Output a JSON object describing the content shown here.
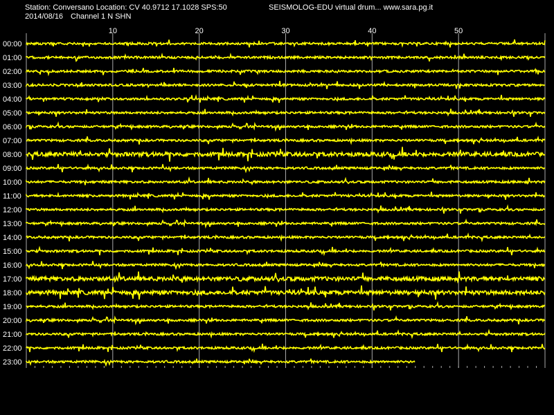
{
  "header": {
    "station": "Station: Conversano Location: CV 40.9712 17.1028 SPS:50",
    "drum": "SEISMOLOG-EDU virtual drum... www.sara.pg.it",
    "date": "2014/08/16",
    "channel": "Channel 1 N SHN"
  },
  "colors": {
    "background": "#000000",
    "trace": "#ffff00",
    "grid": "#aaaaaa",
    "text": "#ffffff"
  },
  "chart_data": {
    "type": "line",
    "title": "",
    "x_ticks": [
      "10",
      "20",
      "30",
      "40",
      "50"
    ],
    "xlim": [
      0,
      60
    ],
    "rows": [
      "00:00",
      "01:00",
      "02:00",
      "03:00",
      "04:00",
      "05:00",
      "06:00",
      "07:00",
      "08:00",
      "09:00",
      "10:00",
      "11:00",
      "12:00",
      "13:00",
      "14:00",
      "15:00",
      "16:00",
      "17:00",
      "18:00",
      "19:00",
      "20:00",
      "21:00",
      "22:00",
      "23:00"
    ],
    "last_row_end_minute": 45,
    "grid": true
  }
}
